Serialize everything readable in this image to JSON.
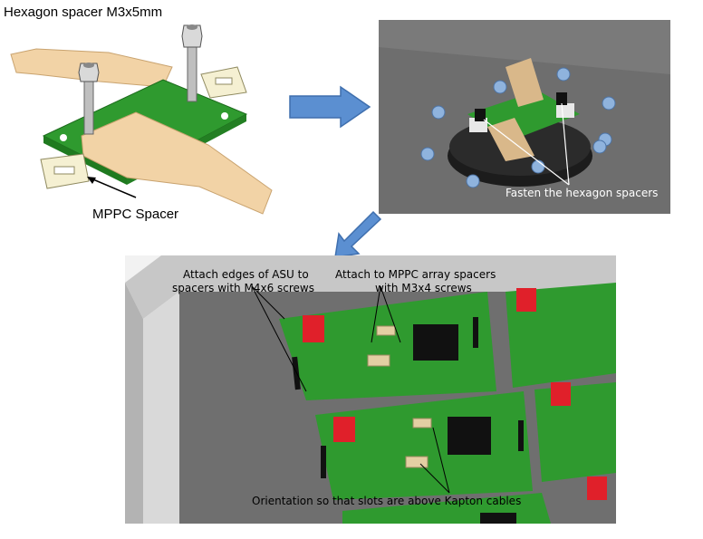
{
  "panel_a": {
    "title": "Hexagon spacer M3x5mm",
    "spacer_label": "MPPC Spacer"
  },
  "panel_b": {
    "callout": "Fasten the hexagon spacers"
  },
  "panel_c": {
    "callout_edges_line1": "Attach edges of ASU to",
    "callout_edges_line2": "spacers with M4x6 screws",
    "callout_mppc_line1": "Attach to MPPC array spacers",
    "callout_mppc_line2": "with M3x4 screws",
    "callout_orientation": "Orientation so that slots are above Kapton cables"
  },
  "colors": {
    "pcb_green": "#2f9a2f",
    "kapton": "#f2d3a6",
    "arrow_blue": "#5b8fd1",
    "red_connector": "#e0202a"
  }
}
